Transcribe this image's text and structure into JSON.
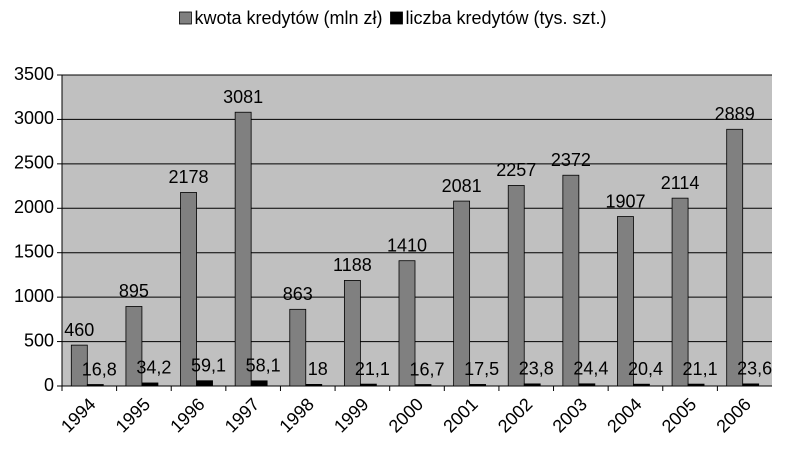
{
  "chart_data": {
    "type": "bar",
    "categories": [
      "1994",
      "1995",
      "1996",
      "1997",
      "1998",
      "1999",
      "2000",
      "2001",
      "2002",
      "2003",
      "2004",
      "2005",
      "2006"
    ],
    "series": [
      {
        "name": "kwota kredytów (mln zł)",
        "color": "#808080",
        "values": [
          460,
          895,
          2178,
          3081,
          863,
          1188,
          1410,
          2081,
          2257,
          2372,
          1907,
          2114,
          2889
        ]
      },
      {
        "name": "liczba kredytów (tys. szt.)",
        "color": "#000000",
        "values": [
          16.8,
          34.2,
          59.1,
          58.1,
          18,
          21.1,
          16.7,
          17.5,
          23.8,
          24.4,
          20.4,
          21.1,
          23.6
        ],
        "value_labels": [
          "16,8",
          "34,2",
          "59,1",
          "58,1",
          "18",
          "21,1",
          "16,7",
          "17,5",
          "23,8",
          "24,4",
          "20,4",
          "21,1",
          "23,6"
        ]
      }
    ],
    "ylim": [
      0,
      3500
    ],
    "yticks": [
      0,
      500,
      1000,
      1500,
      2000,
      2500,
      3000,
      3500
    ],
    "grid": true,
    "legend": "top",
    "background": "#c0c0c0"
  }
}
